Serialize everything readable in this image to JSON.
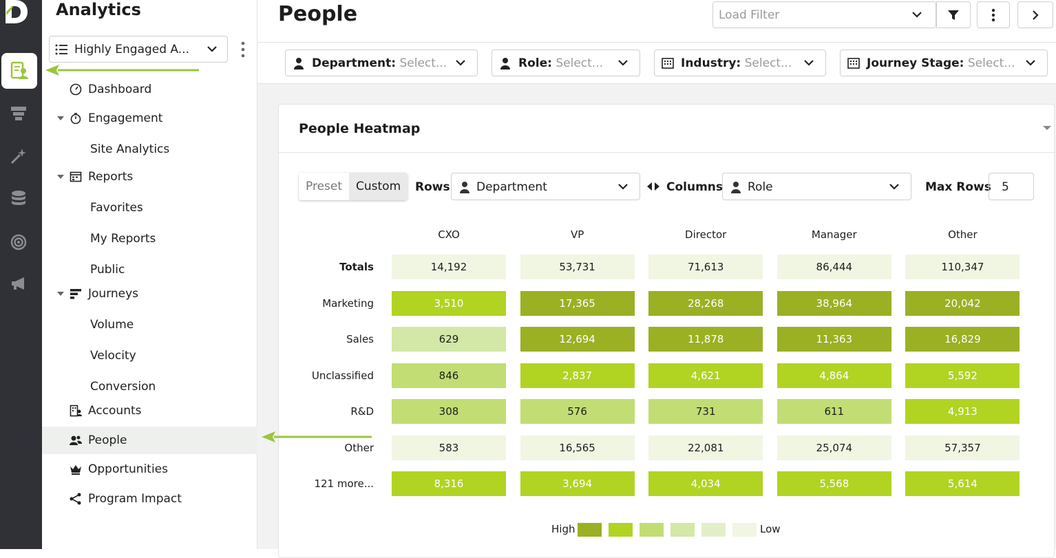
{
  "sidebar": {
    "title": "Analytics",
    "report_select": "Highly Engaged A...",
    "nav": [
      {
        "label": "Dashboard"
      },
      {
        "label": "Engagement"
      },
      {
        "label": "Site Analytics"
      },
      {
        "label": "Reports"
      },
      {
        "label": "Favorites"
      },
      {
        "label": "My Reports"
      },
      {
        "label": "Public"
      },
      {
        "label": "Journeys"
      },
      {
        "label": "Volume"
      },
      {
        "label": "Velocity"
      },
      {
        "label": "Conversion"
      },
      {
        "label": "Accounts"
      },
      {
        "label": "People"
      },
      {
        "label": "Opportunities"
      },
      {
        "label": "Program Impact"
      }
    ]
  },
  "header": {
    "title": "People",
    "load_filter_placeholder": "Load Filter"
  },
  "filters": [
    {
      "label": "Department:",
      "placeholder": "Select..."
    },
    {
      "label": "Role:",
      "placeholder": "Select..."
    },
    {
      "label": "Industry:",
      "placeholder": "Select..."
    },
    {
      "label": "Journey Stage:",
      "placeholder": "Select..."
    }
  ],
  "heatmap": {
    "title": "People Heatmap",
    "mode_preset": "Preset",
    "mode_custom": "Custom",
    "rows_label": "Rows",
    "rows_value": "Department",
    "columns_label": "Columns",
    "columns_value": "Role",
    "max_rows_label": "Max Rows",
    "max_rows_value": "5",
    "columns": [
      "CXO",
      "VP",
      "Director",
      "Manager",
      "Other"
    ],
    "rows": [
      {
        "label": "Totals",
        "bold": true,
        "values": [
          "14,192",
          "53,731",
          "71,613",
          "86,444",
          "110,347"
        ],
        "levels": [
          0,
          0,
          0,
          0,
          0
        ]
      },
      {
        "label": "Marketing",
        "values": [
          "3,510",
          "17,365",
          "28,268",
          "38,964",
          "20,042"
        ],
        "levels": [
          4,
          5,
          5,
          5,
          5
        ]
      },
      {
        "label": "Sales",
        "values": [
          "629",
          "12,694",
          "11,878",
          "11,363",
          "16,829"
        ],
        "levels": [
          2,
          5,
          5,
          5,
          5
        ]
      },
      {
        "label": "Unclassified",
        "values": [
          "846",
          "2,837",
          "4,621",
          "4,864",
          "5,592"
        ],
        "levels": [
          3,
          4,
          4,
          4,
          4
        ]
      },
      {
        "label": "R&D",
        "values": [
          "308",
          "576",
          "731",
          "611",
          "4,913"
        ],
        "levels": [
          3,
          3,
          3,
          3,
          4
        ]
      },
      {
        "label": "Other",
        "values": [
          "583",
          "16,565",
          "22,081",
          "25,074",
          "57,357"
        ],
        "levels": [
          0,
          0,
          0,
          0,
          0
        ]
      },
      {
        "label": "121 more...",
        "values": [
          "8,316",
          "3,694",
          "4,034",
          "5,568",
          "5,614"
        ],
        "levels": [
          4,
          4,
          4,
          4,
          4
        ]
      }
    ],
    "legend_high": "High",
    "legend_low": "Low",
    "level_colors": [
      "#f1f6e3",
      "#e3efc9",
      "#d3e8a6",
      "#c2dd73",
      "#b1d322",
      "#9bb023"
    ]
  }
}
